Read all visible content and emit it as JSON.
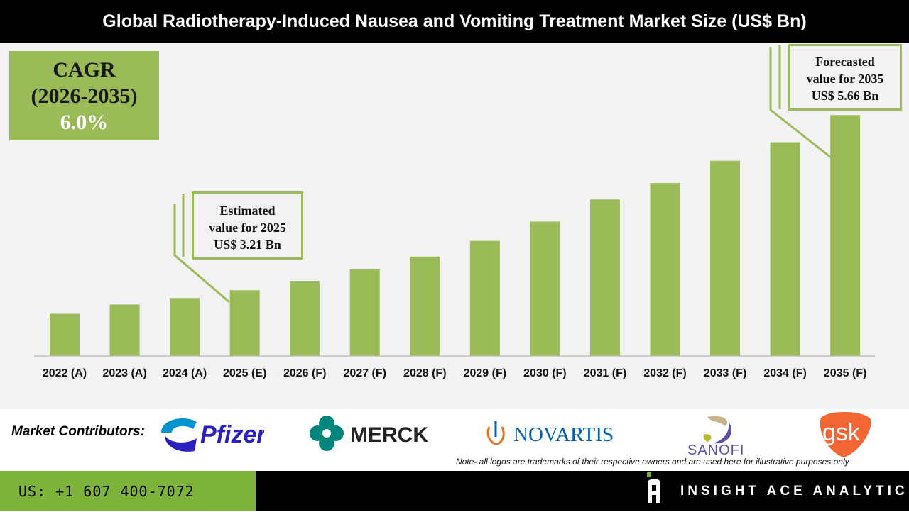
{
  "title": "Global Radiotherapy-Induced Nausea and Vomiting Treatment Market Size (US$ Bn)",
  "cagr": {
    "label": "CAGR",
    "period": "(2026-2035)",
    "value": "6.0%"
  },
  "callouts": {
    "estimated": [
      "Estimated",
      "value for 2025",
      "US$ 3.21 Bn"
    ],
    "forecast": [
      "Forecasted",
      "value for 2035",
      "US$ 5.66 Bn"
    ]
  },
  "chart_data": {
    "type": "bar",
    "categories": [
      "2022 (A)",
      "2023 (A)",
      "2024 (A)",
      "2025 (E)",
      "2026 (F)",
      "2027 (F)",
      "2028 (F)",
      "2029 (F)",
      "2030 (F)",
      "2031 (F)",
      "2032 (F)",
      "2033 (F)",
      "2034 (F)",
      "2035 (F)"
    ],
    "values": [
      2.88,
      3.01,
      3.1,
      3.21,
      3.34,
      3.5,
      3.68,
      3.9,
      4.17,
      4.48,
      4.71,
      5.02,
      5.28,
      5.66
    ],
    "ylim": [
      2.29,
      6.0
    ],
    "grid": false,
    "bar_color": "#9bbb59",
    "xlabel": "",
    "ylabel": ""
  },
  "contributors": {
    "label": "Market Contributors:",
    "logos": [
      "Pfizer",
      "MERCK",
      "NOVARTIS",
      "SANOFI",
      "gsk"
    ]
  },
  "note": "Note- all logos are trademarks of their respective owners and are used here for illustrative purposes only.",
  "footer": {
    "phone": "US: +1 607 400-7072",
    "brand": "INSIGHT ACE ANALYTIC"
  },
  "colors": {
    "accent": "#9bbb59",
    "footer_green": "#7db33a"
  }
}
